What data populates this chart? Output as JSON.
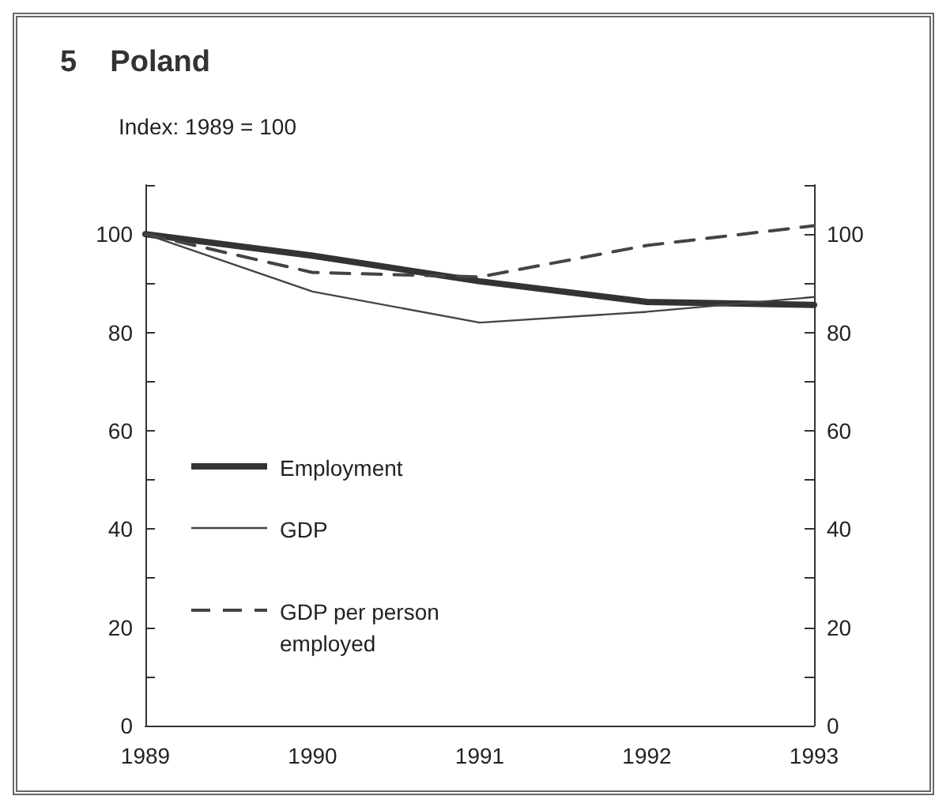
{
  "chart_data": {
    "type": "line",
    "title": "5    Poland",
    "ylabel": "Index: 1989 = 100",
    "x": [
      1989,
      1990,
      1991,
      1992,
      1993
    ],
    "series": [
      {
        "name": "Employment",
        "color": "#333333",
        "values": [
          100,
          95.6,
          90.4,
          86.2,
          85.6
        ],
        "line_style": "solid"
      },
      {
        "name": "GDP",
        "color": "#444444",
        "values": [
          100,
          88.3,
          82,
          84.2,
          87.2
        ],
        "line_style": "solid"
      },
      {
        "name": "GDP per person employed",
        "color": "#444444",
        "values": [
          100,
          92.2,
          91.3,
          97.7,
          101.7
        ],
        "line_style": "dashed"
      }
    ],
    "xlim": [
      1989,
      1993
    ],
    "xticks": [
      1989,
      1990,
      1991,
      1992,
      1993
    ],
    "ylim": [
      0,
      110
    ],
    "yticks": [
      0,
      {
        "value": 10,
        "label": null
      },
      20,
      {
        "value": 30,
        "label": null
      },
      40,
      {
        "value": 50,
        "label": null
      },
      60,
      {
        "value": 70,
        "label": null
      },
      80,
      {
        "value": 90,
        "label": null
      },
      100,
      {
        "value": 110,
        "label": null
      }
    ],
    "y2lim": [
      0,
      110
    ],
    "y2ticks": [
      0,
      {
        "value": 10,
        "label": null
      },
      20,
      {
        "value": 30,
        "label": null
      },
      40,
      {
        "value": 50,
        "label": null
      },
      60,
      {
        "value": 70,
        "label": null
      },
      80,
      {
        "value": 90,
        "label": null
      },
      100,
      {
        "value": 110,
        "label": null
      }
    ],
    "legend": "left",
    "grid": false,
    "marker": "none"
  }
}
